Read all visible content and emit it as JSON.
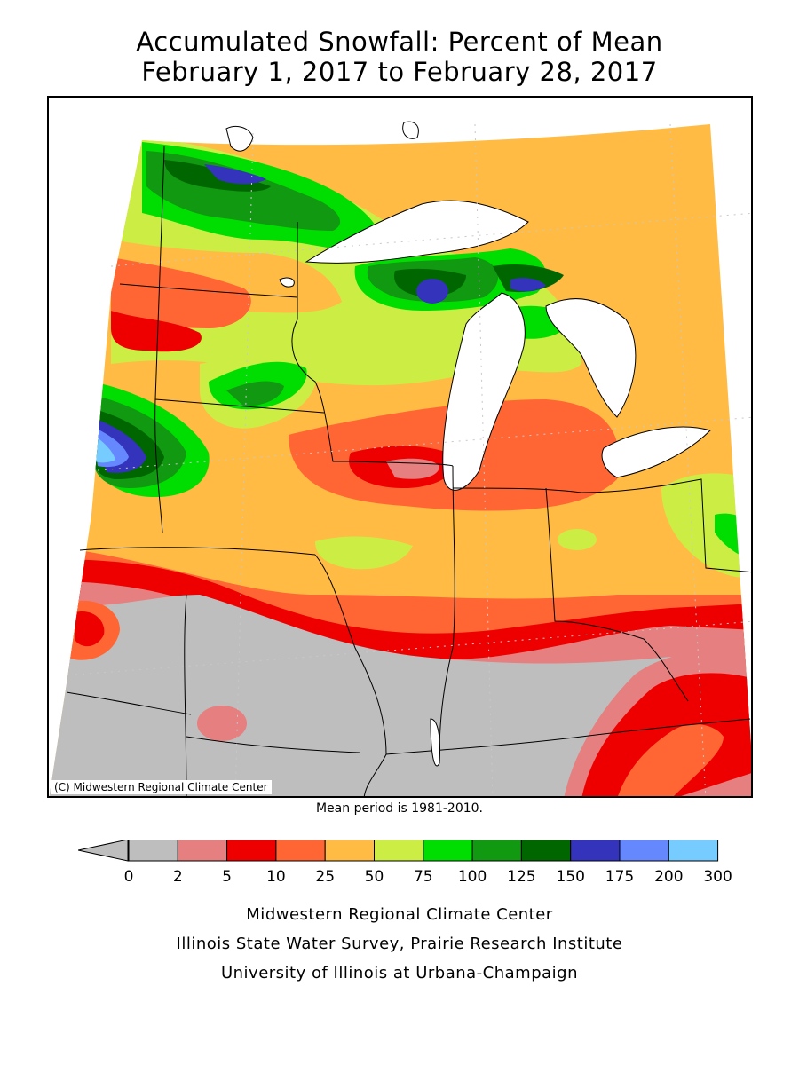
{
  "title": {
    "line1": "Accumulated Snowfall: Percent of Mean",
    "line2": "February 1, 2017 to February 28, 2017"
  },
  "map": {
    "copyright": "(C) Midwestern Regional Climate Center",
    "region": "Midwest United States and Great Lakes"
  },
  "mean_note": "Mean period is 1981-2010.",
  "legend": {
    "ticks": [
      "0",
      "2",
      "5",
      "10",
      "25",
      "50",
      "75",
      "100",
      "125",
      "150",
      "175",
      "200",
      "300"
    ],
    "colors": [
      "#bebebe",
      "#e67f7f",
      "#ee0000",
      "#ff6633",
      "#ffbb44",
      "#ccee44",
      "#00dd00",
      "#119911",
      "#006600",
      "#3333bb",
      "#6688ff",
      "#77ccff"
    ],
    "arrow_color": "#bebebe"
  },
  "footer": {
    "line1": "Midwestern Regional Climate Center",
    "line2": "Illinois State Water Survey, Prairie Research Institute",
    "line3": "University of Illinois at Urbana-Champaign"
  }
}
